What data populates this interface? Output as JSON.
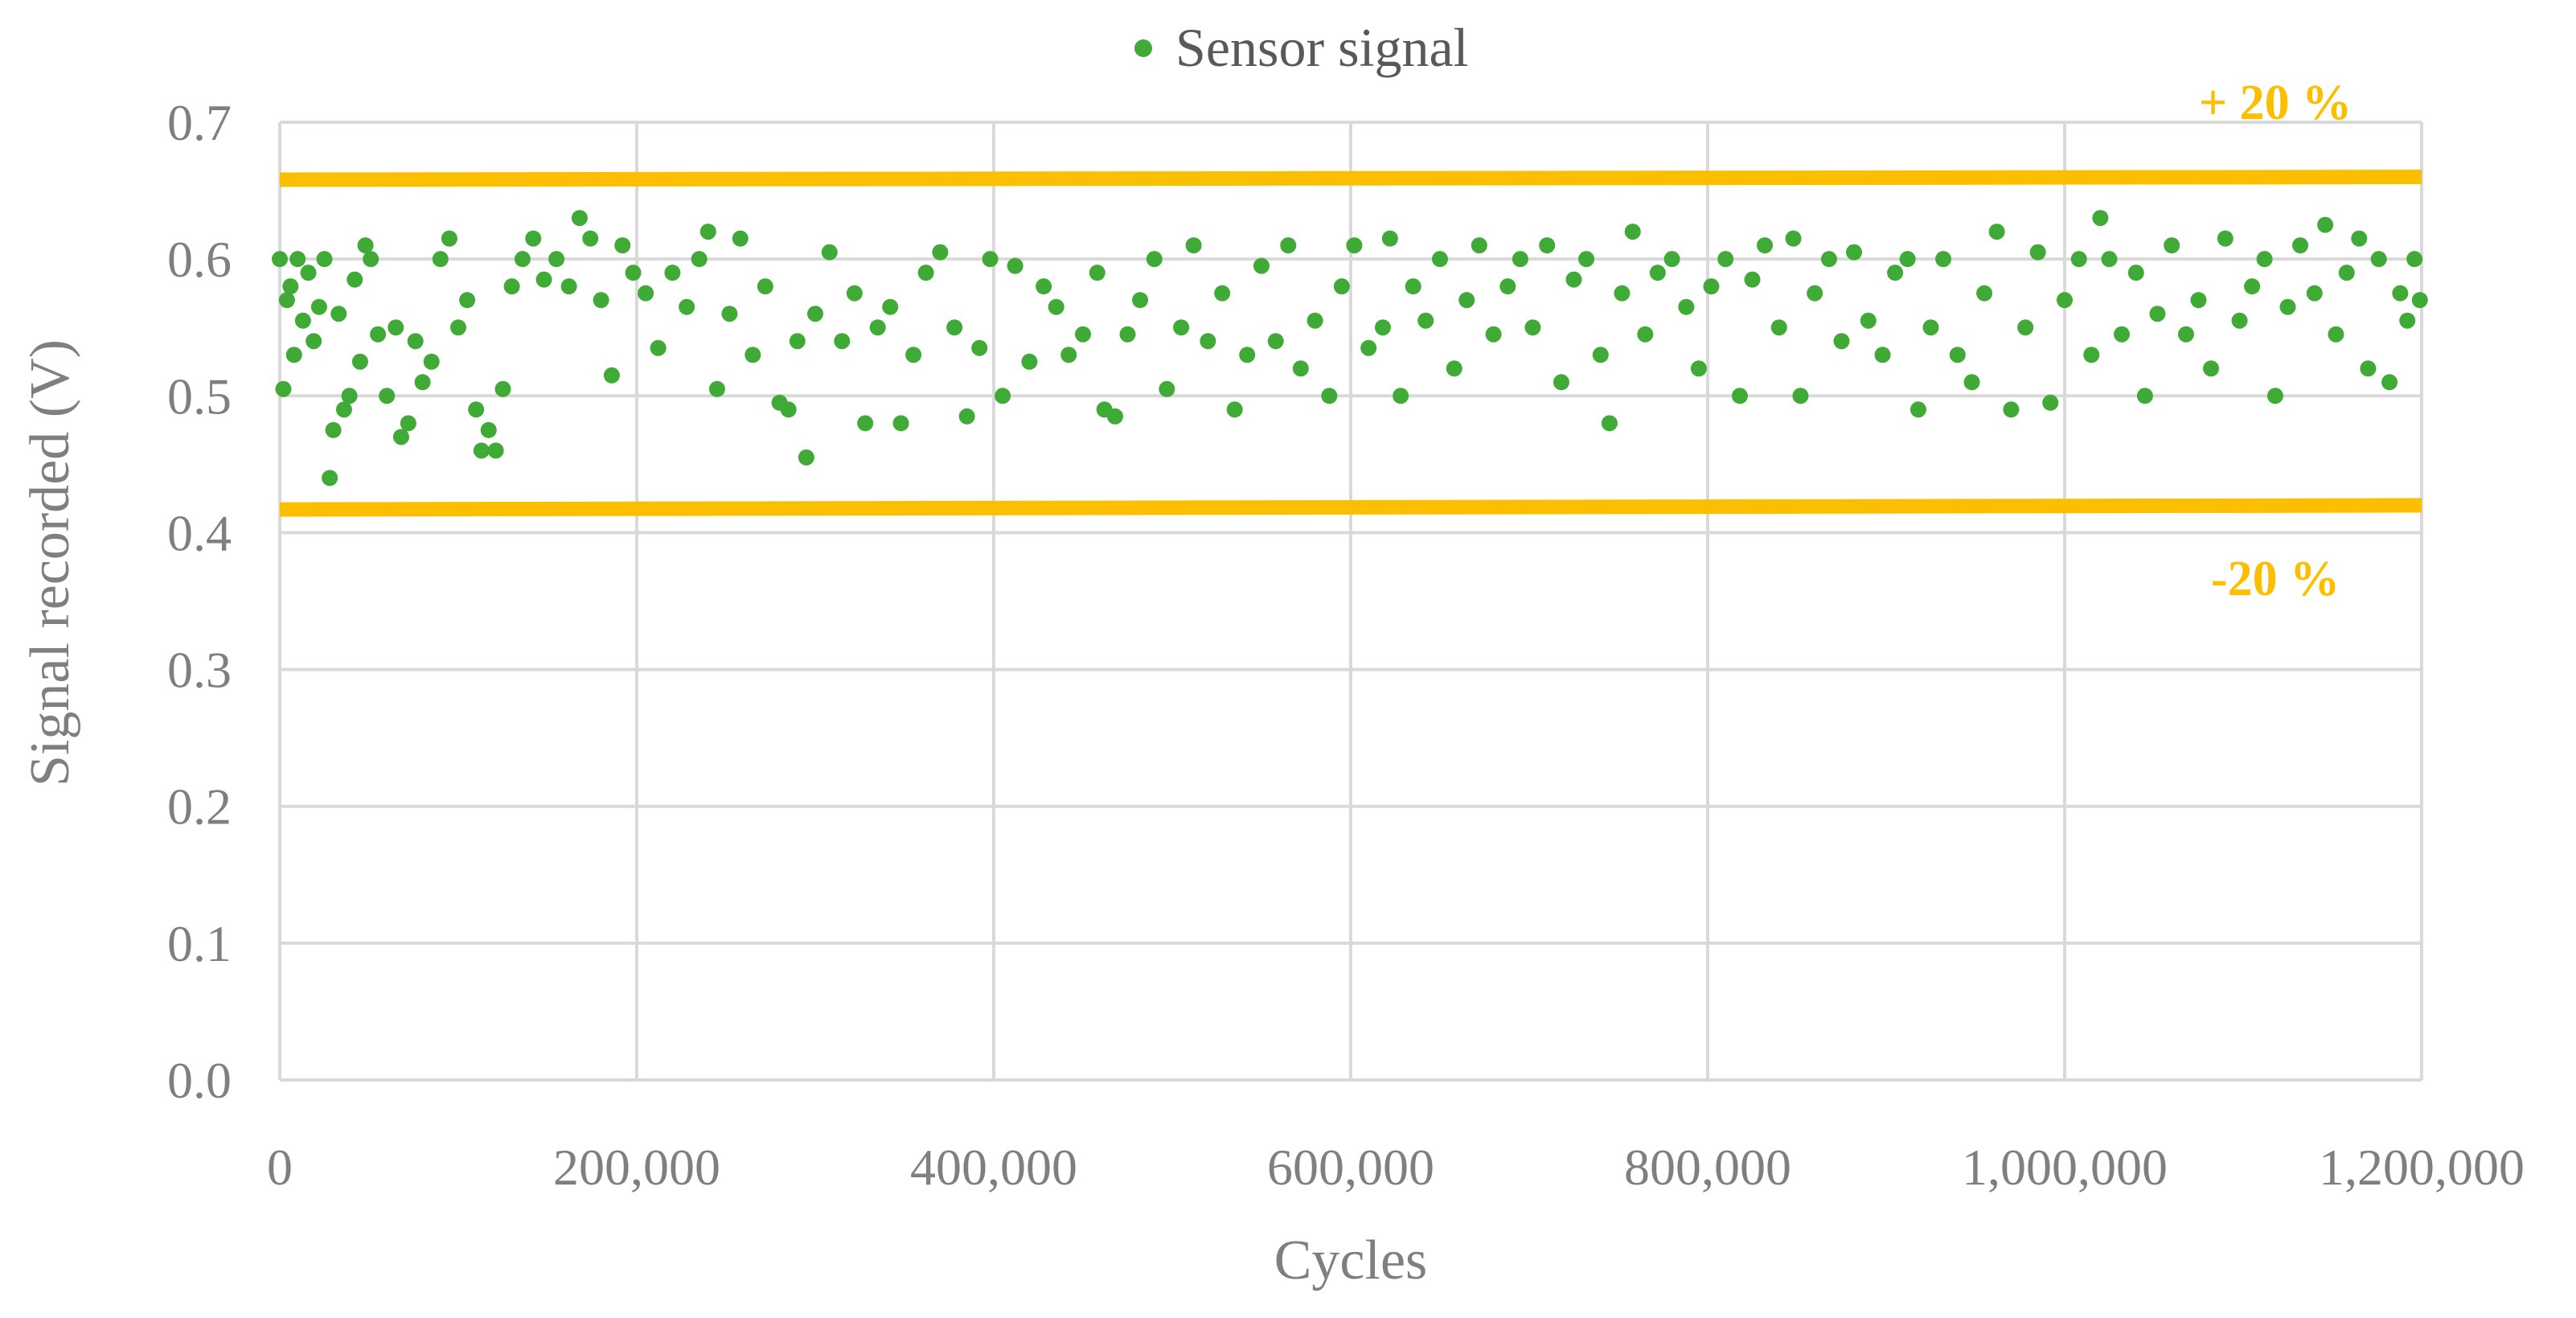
{
  "chart_data": {
    "type": "scatter",
    "legend": {
      "position": "top",
      "entries": [
        {
          "label": "Sensor signal",
          "color": "#3faa35"
        }
      ]
    },
    "xlabel": "Cycles",
    "ylabel": "Signal recorded (V)",
    "xlim": [
      0,
      1200000
    ],
    "ylim": [
      0.0,
      0.7
    ],
    "grid": true,
    "x_ticks": [
      0,
      200000,
      400000,
      600000,
      800000,
      1000000,
      1200000
    ],
    "x_tick_labels": [
      "0",
      "200,000",
      "400,000",
      "600,000",
      "800,000",
      "1,000,000",
      "1,200,000"
    ],
    "y_ticks": [
      0.0,
      0.1,
      0.2,
      0.3,
      0.4,
      0.5,
      0.6,
      0.7
    ],
    "y_tick_labels": [
      "0.0",
      "0.1",
      "0.2",
      "0.3",
      "0.4",
      "0.5",
      "0.6",
      "0.7"
    ],
    "limit_lines": [
      {
        "label": "+ 20 %",
        "y_start": 0.658,
        "y_end": 0.66,
        "color": "#fcbf00"
      },
      {
        "label": "-20 %",
        "y_start": 0.417,
        "y_end": 0.42,
        "color": "#fcbf00"
      }
    ],
    "series": [
      {
        "name": "Sensor signal",
        "color": "#3faa35",
        "points": [
          [
            0,
            0.6
          ],
          [
            2000,
            0.505
          ],
          [
            4000,
            0.57
          ],
          [
            6000,
            0.58
          ],
          [
            8000,
            0.53
          ],
          [
            10000,
            0.6
          ],
          [
            13000,
            0.555
          ],
          [
            16000,
            0.59
          ],
          [
            19000,
            0.54
          ],
          [
            22000,
            0.565
          ],
          [
            25000,
            0.6
          ],
          [
            28000,
            0.44
          ],
          [
            30000,
            0.475
          ],
          [
            33000,
            0.56
          ],
          [
            36000,
            0.49
          ],
          [
            39000,
            0.5
          ],
          [
            42000,
            0.585
          ],
          [
            45000,
            0.525
          ],
          [
            48000,
            0.61
          ],
          [
            51000,
            0.6
          ],
          [
            55000,
            0.545
          ],
          [
            60000,
            0.5
          ],
          [
            65000,
            0.55
          ],
          [
            68000,
            0.47
          ],
          [
            72000,
            0.48
          ],
          [
            76000,
            0.54
          ],
          [
            80000,
            0.51
          ],
          [
            85000,
            0.525
          ],
          [
            90000,
            0.6
          ],
          [
            95000,
            0.615
          ],
          [
            100000,
            0.55
          ],
          [
            105000,
            0.57
          ],
          [
            110000,
            0.49
          ],
          [
            113000,
            0.46
          ],
          [
            117000,
            0.475
          ],
          [
            121000,
            0.46
          ],
          [
            125000,
            0.505
          ],
          [
            130000,
            0.58
          ],
          [
            136000,
            0.6
          ],
          [
            142000,
            0.615
          ],
          [
            148000,
            0.585
          ],
          [
            155000,
            0.6
          ],
          [
            162000,
            0.58
          ],
          [
            168000,
            0.63
          ],
          [
            174000,
            0.615
          ],
          [
            180000,
            0.57
          ],
          [
            186000,
            0.515
          ],
          [
            192000,
            0.61
          ],
          [
            198000,
            0.59
          ],
          [
            205000,
            0.575
          ],
          [
            212000,
            0.535
          ],
          [
            220000,
            0.59
          ],
          [
            228000,
            0.565
          ],
          [
            235000,
            0.6
          ],
          [
            240000,
            0.62
          ],
          [
            245000,
            0.505
          ],
          [
            252000,
            0.56
          ],
          [
            258000,
            0.615
          ],
          [
            265000,
            0.53
          ],
          [
            272000,
            0.58
          ],
          [
            280000,
            0.495
          ],
          [
            285000,
            0.49
          ],
          [
            290000,
            0.54
          ],
          [
            295000,
            0.455
          ],
          [
            300000,
            0.56
          ],
          [
            308000,
            0.605
          ],
          [
            315000,
            0.54
          ],
          [
            322000,
            0.575
          ],
          [
            328000,
            0.48
          ],
          [
            335000,
            0.55
          ],
          [
            342000,
            0.565
          ],
          [
            348000,
            0.48
          ],
          [
            355000,
            0.53
          ],
          [
            362000,
            0.59
          ],
          [
            370000,
            0.605
          ],
          [
            378000,
            0.55
          ],
          [
            385000,
            0.485
          ],
          [
            392000,
            0.535
          ],
          [
            398000,
            0.6
          ],
          [
            405000,
            0.5
          ],
          [
            412000,
            0.595
          ],
          [
            420000,
            0.525
          ],
          [
            428000,
            0.58
          ],
          [
            435000,
            0.565
          ],
          [
            442000,
            0.53
          ],
          [
            450000,
            0.545
          ],
          [
            458000,
            0.59
          ],
          [
            462000,
            0.49
          ],
          [
            468000,
            0.485
          ],
          [
            475000,
            0.545
          ],
          [
            482000,
            0.57
          ],
          [
            490000,
            0.6
          ],
          [
            497000,
            0.505
          ],
          [
            505000,
            0.55
          ],
          [
            512000,
            0.61
          ],
          [
            520000,
            0.54
          ],
          [
            528000,
            0.575
          ],
          [
            535000,
            0.49
          ],
          [
            542000,
            0.53
          ],
          [
            550000,
            0.595
          ],
          [
            558000,
            0.54
          ],
          [
            565000,
            0.61
          ],
          [
            572000,
            0.52
          ],
          [
            580000,
            0.555
          ],
          [
            588000,
            0.5
          ],
          [
            595000,
            0.58
          ],
          [
            602000,
            0.61
          ],
          [
            610000,
            0.535
          ],
          [
            618000,
            0.55
          ],
          [
            622000,
            0.615
          ],
          [
            628000,
            0.5
          ],
          [
            635000,
            0.58
          ],
          [
            642000,
            0.555
          ],
          [
            650000,
            0.6
          ],
          [
            658000,
            0.52
          ],
          [
            665000,
            0.57
          ],
          [
            672000,
            0.61
          ],
          [
            680000,
            0.545
          ],
          [
            688000,
            0.58
          ],
          [
            695000,
            0.6
          ],
          [
            702000,
            0.55
          ],
          [
            710000,
            0.61
          ],
          [
            718000,
            0.51
          ],
          [
            725000,
            0.585
          ],
          [
            732000,
            0.6
          ],
          [
            740000,
            0.53
          ],
          [
            745000,
            0.48
          ],
          [
            752000,
            0.575
          ],
          [
            758000,
            0.62
          ],
          [
            765000,
            0.545
          ],
          [
            772000,
            0.59
          ],
          [
            780000,
            0.6
          ],
          [
            788000,
            0.565
          ],
          [
            795000,
            0.52
          ],
          [
            802000,
            0.58
          ],
          [
            810000,
            0.6
          ],
          [
            818000,
            0.5
          ],
          [
            825000,
            0.585
          ],
          [
            832000,
            0.61
          ],
          [
            840000,
            0.55
          ],
          [
            848000,
            0.615
          ],
          [
            852000,
            0.5
          ],
          [
            860000,
            0.575
          ],
          [
            868000,
            0.6
          ],
          [
            875000,
            0.54
          ],
          [
            882000,
            0.605
          ],
          [
            890000,
            0.555
          ],
          [
            898000,
            0.53
          ],
          [
            905000,
            0.59
          ],
          [
            912000,
            0.6
          ],
          [
            918000,
            0.49
          ],
          [
            925000,
            0.55
          ],
          [
            932000,
            0.6
          ],
          [
            940000,
            0.53
          ],
          [
            948000,
            0.51
          ],
          [
            955000,
            0.575
          ],
          [
            962000,
            0.62
          ],
          [
            970000,
            0.49
          ],
          [
            978000,
            0.55
          ],
          [
            985000,
            0.605
          ],
          [
            992000,
            0.495
          ],
          [
            1000000,
            0.57
          ],
          [
            1008000,
            0.6
          ],
          [
            1015000,
            0.53
          ],
          [
            1020000,
            0.63
          ],
          [
            1025000,
            0.6
          ],
          [
            1032000,
            0.545
          ],
          [
            1040000,
            0.59
          ],
          [
            1045000,
            0.5
          ],
          [
            1052000,
            0.56
          ],
          [
            1060000,
            0.61
          ],
          [
            1068000,
            0.545
          ],
          [
            1075000,
            0.57
          ],
          [
            1082000,
            0.52
          ],
          [
            1090000,
            0.615
          ],
          [
            1098000,
            0.555
          ],
          [
            1105000,
            0.58
          ],
          [
            1112000,
            0.6
          ],
          [
            1118000,
            0.5
          ],
          [
            1125000,
            0.565
          ],
          [
            1132000,
            0.61
          ],
          [
            1140000,
            0.575
          ],
          [
            1146000,
            0.625
          ],
          [
            1152000,
            0.545
          ],
          [
            1158000,
            0.59
          ],
          [
            1165000,
            0.615
          ],
          [
            1170000,
            0.52
          ],
          [
            1176000,
            0.6
          ],
          [
            1182000,
            0.51
          ],
          [
            1188000,
            0.575
          ],
          [
            1192000,
            0.555
          ],
          [
            1196000,
            0.6
          ],
          [
            1199000,
            0.57
          ]
        ]
      }
    ]
  }
}
